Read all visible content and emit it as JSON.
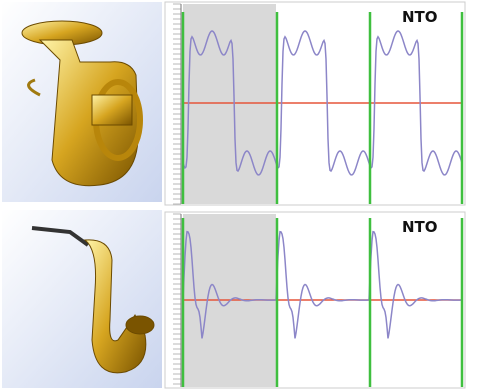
{
  "panels": [
    {
      "label": "NTO"
    },
    {
      "label": "NTO"
    }
  ]
}
